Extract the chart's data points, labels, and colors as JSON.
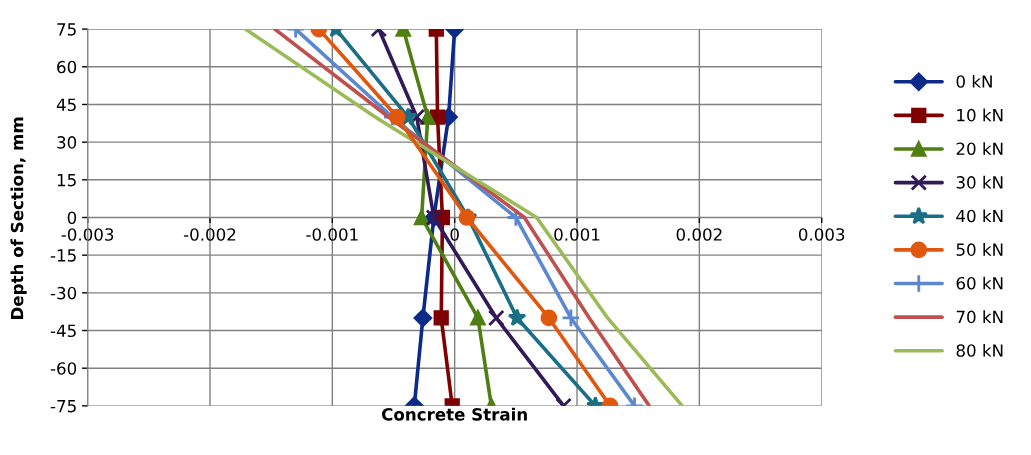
{
  "chart_data": {
    "type": "line",
    "xlabel": "Concrete Strain",
    "ylabel": "Depth of Section, mm",
    "xlim": [
      -0.003,
      0.003
    ],
    "xticks": [
      -0.003,
      -0.002,
      -0.001,
      0,
      0.001,
      0.002,
      0.003
    ],
    "ylim": [
      -75,
      75
    ],
    "yticks": [
      -75,
      -60,
      -45,
      -30,
      -15,
      0,
      15,
      30,
      45,
      60,
      75
    ],
    "grid": true,
    "legend": "right",
    "line_style": "solid",
    "series": [
      {
        "name": "0 kN",
        "color": "#0b2a8a",
        "marker": "diamond",
        "x": [
          0.0,
          -5e-05,
          -0.00017,
          -0.00026,
          -0.00033
        ],
        "values": [
          75,
          40,
          0,
          -40,
          -75
        ]
      },
      {
        "name": "10 kN",
        "color": "#7f0000",
        "marker": "square",
        "x": [
          -0.00015,
          -0.00014,
          -0.0001,
          -0.00011,
          -2e-05
        ],
        "values": [
          75,
          40,
          0,
          -40,
          -75
        ]
      },
      {
        "name": "20 kN",
        "color": "#4f7f12",
        "marker": "triangle",
        "x": [
          -0.00042,
          -0.00022,
          -0.00027,
          0.00019,
          0.0003
        ],
        "values": [
          75,
          40,
          0,
          -40,
          -75
        ]
      },
      {
        "name": "30 kN",
        "color": "#32195a",
        "marker": "x",
        "x": [
          -0.00062,
          -0.00031,
          -0.00017,
          0.00034,
          0.00089
        ],
        "values": [
          75,
          40,
          0,
          -40,
          -75
        ]
      },
      {
        "name": "40 kN",
        "color": "#1a6f86",
        "marker": "star",
        "x": [
          -0.00097,
          -0.00038,
          0.00011,
          0.00051,
          0.00115
        ],
        "values": [
          75,
          40,
          0,
          -40,
          -75
        ]
      },
      {
        "name": "50 kN",
        "color": "#e0580e",
        "marker": "circle",
        "x": [
          -0.00111,
          -0.00047,
          0.0001,
          0.00077,
          0.00127
        ],
        "values": [
          75,
          40,
          0,
          -40,
          -75
        ]
      },
      {
        "name": "60 kN",
        "color": "#5b88d0",
        "marker": "plus",
        "x": [
          -0.0013,
          -0.00051,
          0.0005,
          0.00095,
          0.00147
        ],
        "values": [
          75,
          40,
          0,
          -40,
          -75
        ]
      },
      {
        "name": "70 kN",
        "color": "#c0504d",
        "marker": "none",
        "x": [
          -0.00147,
          -0.00054,
          0.00057,
          0.0011,
          0.00159
        ],
        "values": [
          75,
          40,
          0,
          -40,
          -75
        ]
      },
      {
        "name": "80 kN",
        "color": "#9bbb59",
        "marker": "none",
        "x": [
          -0.00171,
          -0.00065,
          0.00067,
          0.00125,
          0.00186
        ],
        "values": [
          75,
          40,
          0,
          -40,
          -75
        ]
      }
    ]
  }
}
